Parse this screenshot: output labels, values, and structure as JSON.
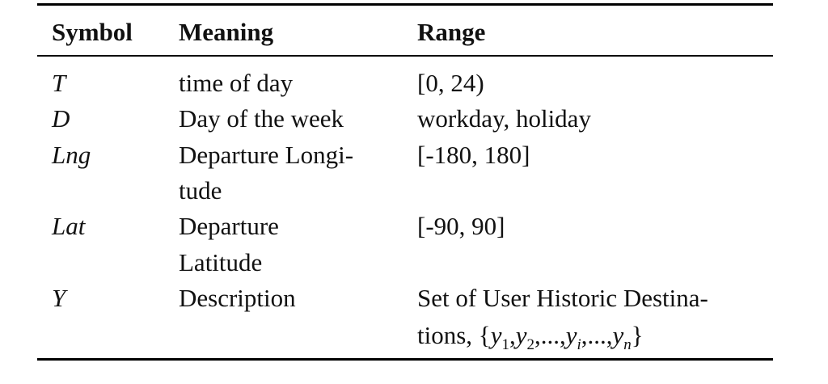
{
  "table": {
    "headers": {
      "symbol": "Symbol",
      "meaning": "Meaning",
      "range": "Range"
    },
    "rows": [
      {
        "symbol": "T",
        "meaning": [
          "time of day"
        ],
        "range": [
          "[0, 24)"
        ]
      },
      {
        "symbol": "D",
        "meaning": [
          "Day of the week"
        ],
        "range": [
          "workday, holiday"
        ]
      },
      {
        "symbol": "Lng",
        "meaning": [
          "Departure Longi-",
          "tude"
        ],
        "range": [
          "[-180, 180]"
        ]
      },
      {
        "symbol": "Lat",
        "meaning": [
          "Departure",
          "Latitude"
        ],
        "range": [
          "[-90, 90]"
        ]
      },
      {
        "symbol": "Y",
        "meaning": [
          "Description"
        ],
        "range": [
          "Set of User Historic Destina-",
          "tions, "
        ],
        "range_set": {
          "open": "{",
          "items": [
            {
              "var": "y",
              "sub": "1"
            },
            {
              "var": "y",
              "sub": "2"
            },
            {
              "var": "",
              "sub": "",
              "text": "...,"
            },
            {
              "var": "y",
              "sub": "i"
            },
            {
              "var": "",
              "sub": "",
              "text": "...,"
            },
            {
              "var": "y",
              "sub": "n"
            }
          ],
          "close": "}"
        }
      }
    ]
  }
}
